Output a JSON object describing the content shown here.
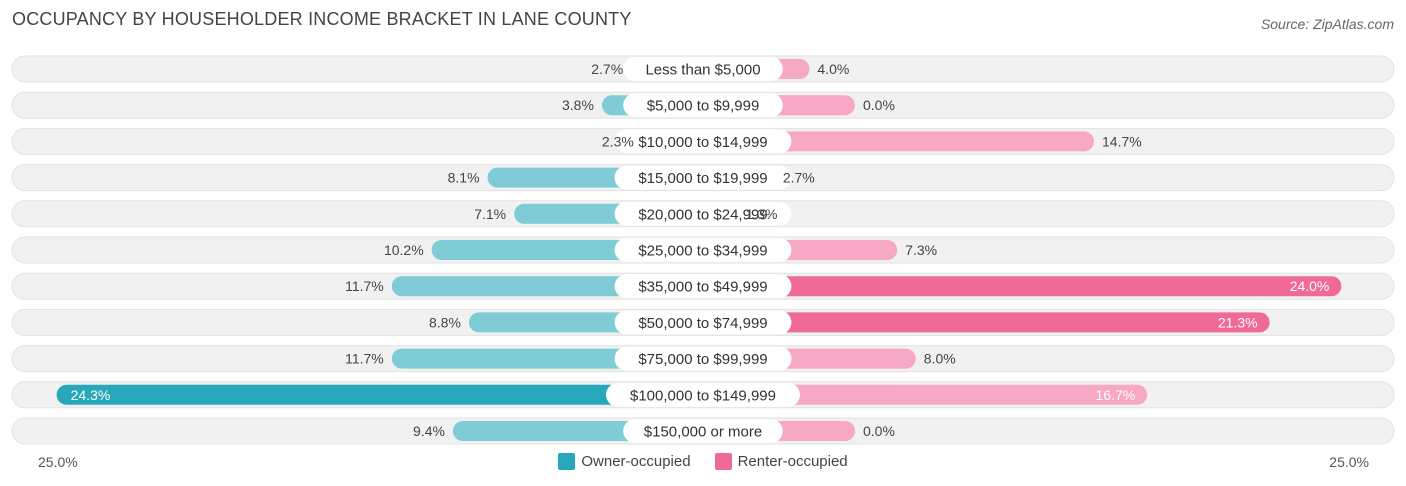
{
  "chart_data": {
    "type": "bar",
    "orientation": "horizontal-diverging",
    "title": "OCCUPANCY BY HOUSEHOLDER INCOME BRACKET IN LANE COUNTY",
    "source": "Source: ZipAtlas.com",
    "categories": [
      "Less than $5,000",
      "$5,000 to $9,999",
      "$10,000 to $14,999",
      "$15,000 to $19,999",
      "$20,000 to $24,999",
      "$25,000 to $34,999",
      "$35,000 to $49,999",
      "$50,000 to $74,999",
      "$75,000 to $99,999",
      "$100,000 to $149,999",
      "$150,000 or more"
    ],
    "series": [
      {
        "name": "Owner-occupied",
        "color": "#5BBFCC",
        "values": [
          2.7,
          3.8,
          2.3,
          8.1,
          7.1,
          10.2,
          11.7,
          8.8,
          11.7,
          24.3,
          9.4
        ]
      },
      {
        "name": "Renter-occupied",
        "color": "#F48FB1",
        "values": [
          4.0,
          0.0,
          14.7,
          2.7,
          1.3,
          7.3,
          24.0,
          21.3,
          8.0,
          16.7,
          0.0
        ]
      }
    ],
    "value_labels": {
      "owner": [
        "2.7%",
        "3.8%",
        "2.3%",
        "8.1%",
        "7.1%",
        "10.2%",
        "11.7%",
        "8.8%",
        "11.7%",
        "24.3%",
        "9.4%"
      ],
      "renter": [
        "4.0%",
        "0.0%",
        "14.7%",
        "2.7%",
        "1.3%",
        "7.3%",
        "24.0%",
        "21.3%",
        "8.0%",
        "16.7%",
        "0.0%"
      ]
    },
    "xlim": [
      -25,
      25
    ],
    "axis_left_label": "25.0%",
    "axis_right_label": "25.0%",
    "legend_position": "bottom-center"
  },
  "colors": {
    "owner_light": "#7FCCD6",
    "owner_strong": "#29A7BA",
    "renter_light": "#F6A8C4",
    "renter_strong": "#F06A96",
    "row_bg": "#F1F1F1"
  }
}
